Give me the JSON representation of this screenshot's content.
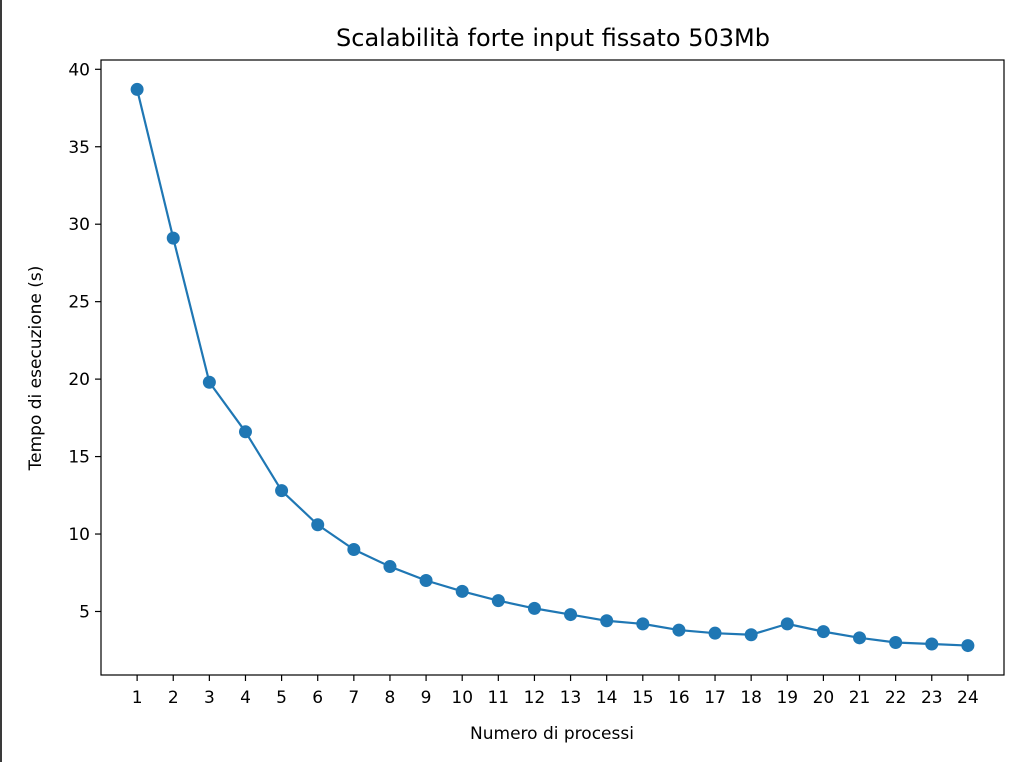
{
  "chart_data": {
    "type": "line",
    "title": "Scalabilità forte input fissato 503Mb",
    "xlabel": "Numero di processi",
    "ylabel": "Tempo di esecuzione (s)",
    "x": [
      1,
      2,
      3,
      4,
      5,
      6,
      7,
      8,
      9,
      10,
      11,
      12,
      13,
      14,
      15,
      16,
      17,
      18,
      19,
      20,
      21,
      22,
      23,
      24
    ],
    "x_ticks": [
      "1",
      "2",
      "3",
      "4",
      "5",
      "6",
      "7",
      "8",
      "9",
      "10",
      "11",
      "12",
      "13",
      "14",
      "15",
      "16",
      "17",
      "18",
      "19",
      "20",
      "21",
      "22",
      "23",
      "24"
    ],
    "series": [
      {
        "values": [
          38.7,
          29.1,
          19.8,
          16.6,
          12.8,
          10.6,
          9.0,
          7.9,
          7.0,
          6.3,
          5.7,
          5.2,
          4.8,
          4.4,
          4.2,
          3.8,
          3.6,
          3.5,
          4.2,
          3.7,
          3.3,
          3.0,
          2.9,
          2.8
        ],
        "color": "#1f77b4",
        "marker": "circle"
      }
    ],
    "y_ticks": [
      5,
      10,
      15,
      20,
      25,
      30,
      35,
      40
    ],
    "xlim": [
      0.0,
      25.0
    ],
    "ylim": [
      0.9,
      40.6
    ],
    "grid": false,
    "legend": false
  }
}
